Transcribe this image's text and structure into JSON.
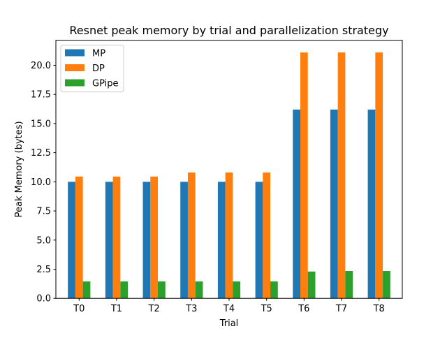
{
  "chart_data": {
    "type": "bar",
    "title": "Resnet peak memory by trial and parallelization strategy",
    "xlabel": "Trial",
    "ylabel": "Peak Memory (bytes)",
    "categories": [
      "T0",
      "T1",
      "T2",
      "T3",
      "T4",
      "T5",
      "T6",
      "T7",
      "T8"
    ],
    "series": [
      {
        "name": "MP",
        "color": "#1f77b4",
        "values": [
          10.0,
          10.0,
          10.0,
          10.0,
          10.0,
          10.0,
          16.2,
          16.2,
          16.2
        ]
      },
      {
        "name": "DP",
        "color": "#ff7f0e",
        "values": [
          10.45,
          10.45,
          10.45,
          10.8,
          10.8,
          10.8,
          21.1,
          21.1,
          21.1
        ]
      },
      {
        "name": "GPipe",
        "color": "#2ca02c",
        "values": [
          1.45,
          1.45,
          1.45,
          1.45,
          1.45,
          1.45,
          2.3,
          2.35,
          2.35
        ]
      }
    ],
    "ylim": [
      0,
      22.15
    ],
    "yticks": [
      "0.0",
      "2.5",
      "5.0",
      "7.5",
      "10.0",
      "12.5",
      "15.0",
      "17.5",
      "20.0"
    ],
    "grid": false,
    "legend_position": "upper-left"
  }
}
